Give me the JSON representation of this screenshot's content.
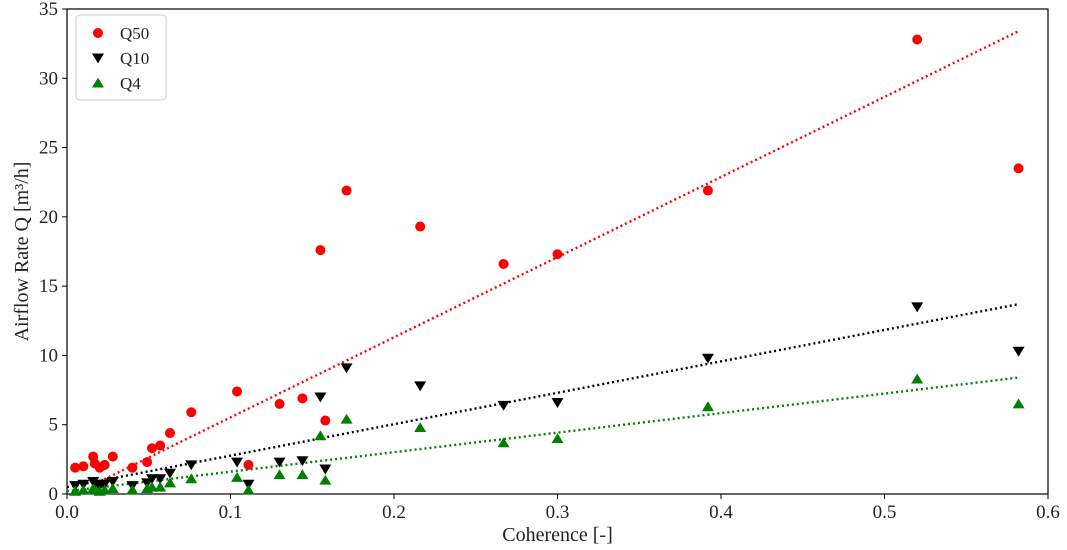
{
  "chart_data": {
    "type": "scatter",
    "title": "",
    "xlabel": "Coherence [-]",
    "ylabel": "Airflow Rate Q [m³/h]",
    "xlim": [
      0,
      0.6
    ],
    "ylim": [
      0,
      35
    ],
    "x_ticks": [
      "0.0",
      "0.1",
      "0.2",
      "0.3",
      "0.4",
      "0.5",
      "0.6"
    ],
    "y_ticks": [
      "0",
      "5",
      "10",
      "15",
      "20",
      "25",
      "30",
      "35"
    ],
    "grid": false,
    "legend_position": "top-left",
    "series": [
      {
        "name": "Q50",
        "marker": "circle",
        "color": "#ff0000",
        "trendline": {
          "style": "dotted",
          "x": [
            0.02,
            0.582
          ],
          "y": [
            0.9,
            33.4
          ]
        },
        "points": [
          [
            0.005,
            1.9
          ],
          [
            0.01,
            2.0
          ],
          [
            0.016,
            2.7
          ],
          [
            0.017,
            2.2
          ],
          [
            0.02,
            1.9
          ],
          [
            0.023,
            2.1
          ],
          [
            0.028,
            2.7
          ],
          [
            0.04,
            1.9
          ],
          [
            0.049,
            2.3
          ],
          [
            0.052,
            3.3
          ],
          [
            0.057,
            3.5
          ],
          [
            0.063,
            4.4
          ],
          [
            0.076,
            5.9
          ],
          [
            0.104,
            7.4
          ],
          [
            0.111,
            2.1
          ],
          [
            0.13,
            6.5
          ],
          [
            0.144,
            6.9
          ],
          [
            0.155,
            17.6
          ],
          [
            0.158,
            5.3
          ],
          [
            0.171,
            21.9
          ],
          [
            0.216,
            19.3
          ],
          [
            0.267,
            16.6
          ],
          [
            0.3,
            17.3
          ],
          [
            0.392,
            21.9
          ],
          [
            0.52,
            32.8
          ],
          [
            0.582,
            23.5
          ]
        ]
      },
      {
        "name": "Q10",
        "marker": "triangle-down",
        "color": "#000000",
        "trendline": {
          "style": "dotted",
          "x": [
            0.0,
            0.582
          ],
          "y": [
            0.5,
            13.7
          ]
        },
        "points": [
          [
            0.005,
            0.6
          ],
          [
            0.01,
            0.7
          ],
          [
            0.016,
            0.9
          ],
          [
            0.017,
            0.7
          ],
          [
            0.02,
            0.6
          ],
          [
            0.023,
            0.7
          ],
          [
            0.028,
            0.9
          ],
          [
            0.04,
            0.6
          ],
          [
            0.049,
            0.8
          ],
          [
            0.052,
            1.1
          ],
          [
            0.057,
            1.1
          ],
          [
            0.063,
            1.5
          ],
          [
            0.076,
            2.1
          ],
          [
            0.104,
            2.3
          ],
          [
            0.111,
            0.7
          ],
          [
            0.13,
            2.3
          ],
          [
            0.144,
            2.4
          ],
          [
            0.155,
            7.0
          ],
          [
            0.158,
            1.8
          ],
          [
            0.171,
            9.1
          ],
          [
            0.216,
            7.8
          ],
          [
            0.267,
            6.4
          ],
          [
            0.3,
            6.6
          ],
          [
            0.392,
            9.8
          ],
          [
            0.52,
            13.5
          ],
          [
            0.582,
            10.3
          ]
        ]
      },
      {
        "name": "Q4",
        "marker": "triangle-up",
        "color": "#008000",
        "trendline": {
          "style": "dotted",
          "x": [
            0.0,
            0.582
          ],
          "y": [
            0.2,
            8.4
          ]
        },
        "points": [
          [
            0.005,
            0.2
          ],
          [
            0.01,
            0.3
          ],
          [
            0.016,
            0.4
          ],
          [
            0.017,
            0.3
          ],
          [
            0.02,
            0.2
          ],
          [
            0.023,
            0.3
          ],
          [
            0.028,
            0.4
          ],
          [
            0.04,
            0.3
          ],
          [
            0.049,
            0.4
          ],
          [
            0.052,
            0.5
          ],
          [
            0.057,
            0.5
          ],
          [
            0.063,
            0.8
          ],
          [
            0.076,
            1.1
          ],
          [
            0.104,
            1.2
          ],
          [
            0.111,
            0.3
          ],
          [
            0.13,
            1.4
          ],
          [
            0.144,
            1.4
          ],
          [
            0.155,
            4.2
          ],
          [
            0.158,
            1.0
          ],
          [
            0.171,
            5.4
          ],
          [
            0.216,
            4.8
          ],
          [
            0.267,
            3.7
          ],
          [
            0.3,
            4.0
          ],
          [
            0.392,
            6.3
          ],
          [
            0.52,
            8.3
          ],
          [
            0.582,
            6.5
          ]
        ]
      }
    ]
  }
}
